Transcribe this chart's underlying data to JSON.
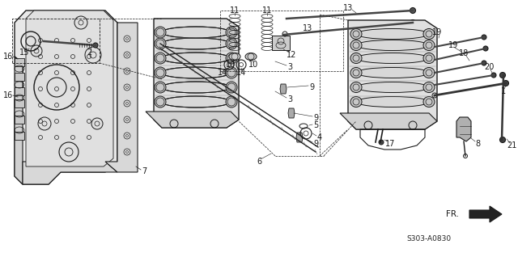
{
  "background_color": "#ffffff",
  "diagram_code": "S303-A0830",
  "fr_label": "FR.",
  "line_color": "#1a1a1a",
  "text_color": "#1a1a1a",
  "font_size_label": 7,
  "font_size_code": 6.5
}
